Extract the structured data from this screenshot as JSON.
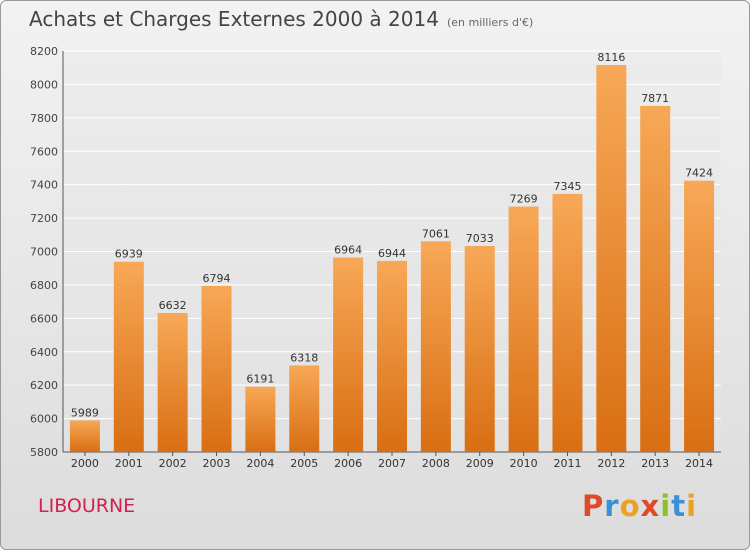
{
  "header": {
    "title": "Achats et Charges Externes 2000 à 2014",
    "subtitle": "(en milliers d'€)"
  },
  "footer": {
    "commune": "LIBOURNE",
    "brand": "Proxiti"
  },
  "colors": {
    "bar_top": "#f7a857",
    "bar_bottom": "#d96e12",
    "title": "#444444",
    "commune": "#d1214f",
    "brand_letters": [
      "#e04a2a",
      "#3a8fd6",
      "#f0a020",
      "#e04a2a",
      "#8fbf2a",
      "#3a8fd6",
      "#f0a020"
    ]
  },
  "chart_data": {
    "type": "bar",
    "title": "Achats et Charges Externes 2000 à 2014",
    "subtitle": "(en milliers d'€)",
    "categories": [
      "2000",
      "2001",
      "2002",
      "2003",
      "2004",
      "2005",
      "2006",
      "2007",
      "2008",
      "2009",
      "2010",
      "2011",
      "2012",
      "2013",
      "2014"
    ],
    "values": [
      5989,
      6939,
      6632,
      6794,
      6191,
      6318,
      6964,
      6944,
      7061,
      7033,
      7269,
      7345,
      8116,
      7871,
      7424
    ],
    "ylim": [
      5800,
      8200
    ],
    "yticks": [
      5800,
      6000,
      6200,
      6400,
      6600,
      6800,
      7000,
      7200,
      7400,
      7600,
      7800,
      8000,
      8200
    ],
    "grid": true,
    "data_labels": true
  }
}
